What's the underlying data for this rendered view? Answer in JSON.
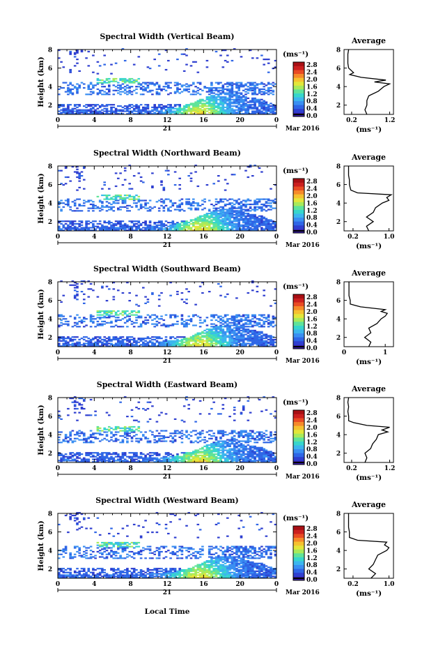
{
  "figure": {
    "xlabel": "Local Time",
    "day_label": "21",
    "month_label": "Mar 2016",
    "ylabel": "Height (km)",
    "colorbar_unit": "(ms⁻¹)",
    "colorbar_ticks": [
      "2.8",
      "2.4",
      "2.0",
      "1.6",
      "1.2",
      "0.8",
      "0.4",
      "0.0"
    ],
    "avg_title": "Average",
    "avg_xlabel": "(ms⁻¹)"
  },
  "chart_data": [
    {
      "type": "heatmap",
      "title": "Spectral Width (Vertical Beam)",
      "xlabel": "Local Time",
      "ylabel": "Height (km)",
      "x_ticks": [
        "0",
        "4",
        "8",
        "12",
        "16",
        "20",
        "0"
      ],
      "y_ticks": [
        "2",
        "4",
        "6",
        "8"
      ],
      "xlim": [
        0,
        24
      ],
      "ylim": [
        1,
        8
      ],
      "colorbar": {
        "label": "(ms⁻¹)",
        "min": 0.0,
        "max": 2.8
      },
      "average_profile": {
        "title": "Average",
        "xlabel": "(ms⁻¹)",
        "x_ticks": [
          "0.2",
          "1.2"
        ],
        "xlim": [
          0.0,
          1.3
        ],
        "height_km": [
          1.0,
          1.5,
          2.0,
          2.5,
          3.0,
          3.5,
          4.0,
          4.3,
          4.5,
          4.7,
          5.0,
          5.3,
          5.5,
          6.0,
          6.5,
          7.0,
          7.5,
          8.0
        ],
        "width": [
          0.6,
          0.55,
          0.6,
          0.6,
          0.65,
          0.9,
          1.05,
          1.2,
          0.8,
          1.1,
          0.45,
          0.15,
          0.25,
          0.12,
          0.1,
          0.1,
          0.1,
          0.12
        ]
      }
    },
    {
      "type": "heatmap",
      "title": "Spectral Width (Northward Beam)",
      "xlabel": "Local Time",
      "ylabel": "Height (km)",
      "x_ticks": [
        "0",
        "4",
        "8",
        "12",
        "16",
        "20",
        "0"
      ],
      "y_ticks": [
        "2",
        "4",
        "6",
        "8"
      ],
      "xlim": [
        0,
        24
      ],
      "ylim": [
        1,
        8
      ],
      "colorbar": {
        "label": "(ms⁻¹)",
        "min": 0.0,
        "max": 2.8
      },
      "average_profile": {
        "title": "Average",
        "xlabel": "(ms⁻¹)",
        "x_ticks": [
          "0.2",
          "1.0"
        ],
        "xlim": [
          0.0,
          1.1
        ],
        "height_km": [
          1.0,
          1.5,
          2.0,
          2.5,
          3.0,
          3.5,
          4.0,
          4.3,
          4.6,
          4.9,
          5.1,
          5.4,
          6.0,
          6.5,
          7.0,
          7.5,
          8.0
        ],
        "width": [
          0.55,
          0.5,
          0.65,
          0.5,
          0.65,
          0.7,
          0.85,
          1.0,
          0.95,
          1.05,
          0.3,
          0.15,
          0.12,
          0.12,
          0.1,
          0.1,
          0.1
        ]
      }
    },
    {
      "type": "heatmap",
      "title": "Spectral Width (Southward Beam)",
      "xlabel": "Local Time",
      "ylabel": "Height (km)",
      "x_ticks": [
        "0",
        "4",
        "8",
        "12",
        "16",
        "20",
        "0"
      ],
      "y_ticks": [
        "2",
        "4",
        "6",
        "8"
      ],
      "xlim": [
        0,
        24
      ],
      "ylim": [
        1,
        8
      ],
      "colorbar": {
        "label": "(ms⁻¹)",
        "min": 0.0,
        "max": 2.8
      },
      "average_profile": {
        "title": "Average",
        "xlabel": "(ms⁻¹)",
        "x_ticks": [
          "0",
          "1"
        ],
        "xlim": [
          0.0,
          1.2
        ],
        "height_km": [
          1.0,
          1.5,
          2.0,
          2.5,
          3.0,
          3.5,
          4.0,
          4.3,
          4.6,
          4.8,
          5.0,
          5.3,
          5.6,
          6.0,
          6.5,
          7.0,
          7.5,
          8.0
        ],
        "width": [
          0.6,
          0.65,
          0.5,
          0.65,
          0.6,
          0.8,
          0.9,
          1.0,
          1.05,
          0.9,
          1.0,
          0.4,
          0.15,
          0.15,
          0.12,
          0.12,
          0.12,
          0.12
        ]
      }
    },
    {
      "type": "heatmap",
      "title": "Spectral Width (Eastward Beam)",
      "xlabel": "Local Time",
      "ylabel": "Height (km)",
      "x_ticks": [
        "0",
        "4",
        "8",
        "12",
        "16",
        "20",
        "0"
      ],
      "y_ticks": [
        "2",
        "4",
        "6",
        "8"
      ],
      "xlim": [
        0,
        24
      ],
      "ylim": [
        1,
        8
      ],
      "colorbar": {
        "label": "(ms⁻¹)",
        "min": 0.0,
        "max": 2.8
      },
      "average_profile": {
        "title": "Average",
        "xlabel": "(ms⁻¹)",
        "x_ticks": [
          "0.2",
          "1.2"
        ],
        "xlim": [
          0.0,
          1.3
        ],
        "height_km": [
          1.0,
          1.5,
          2.0,
          2.5,
          3.0,
          3.5,
          4.0,
          4.3,
          4.5,
          4.8,
          5.0,
          5.3,
          5.5,
          6.0,
          6.5,
          7.0,
          7.5,
          8.0
        ],
        "width": [
          0.55,
          0.6,
          0.55,
          0.7,
          0.75,
          0.85,
          0.9,
          1.15,
          1.0,
          1.2,
          0.6,
          0.25,
          0.12,
          0.12,
          0.1,
          0.12,
          0.1,
          0.12
        ]
      }
    },
    {
      "type": "heatmap",
      "title": "Spectral Width (Westward Beam)",
      "xlabel": "Local Time",
      "ylabel": "Height (km)",
      "x_ticks": [
        "0",
        "4",
        "8",
        "12",
        "16",
        "20",
        "0"
      ],
      "y_ticks": [
        "2",
        "4",
        "6",
        "8"
      ],
      "xlim": [
        0,
        24
      ],
      "ylim": [
        1,
        8
      ],
      "colorbar": {
        "label": "(ms⁻¹)",
        "min": 0.0,
        "max": 2.8
      },
      "average_profile": {
        "title": "Average",
        "xlabel": "(ms⁻¹)",
        "x_ticks": [
          "0.2",
          "1.0"
        ],
        "xlim": [
          0.0,
          1.1
        ],
        "height_km": [
          1.0,
          1.5,
          2.0,
          2.5,
          3.0,
          3.5,
          4.0,
          4.3,
          4.6,
          4.9,
          5.1,
          5.4,
          6.0,
          6.5,
          7.0,
          7.5,
          8.0
        ],
        "width": [
          0.6,
          0.7,
          0.55,
          0.65,
          0.7,
          0.75,
          0.95,
          1.0,
          0.9,
          0.95,
          0.3,
          0.12,
          0.12,
          0.1,
          0.1,
          0.1,
          0.1
        ]
      }
    }
  ]
}
